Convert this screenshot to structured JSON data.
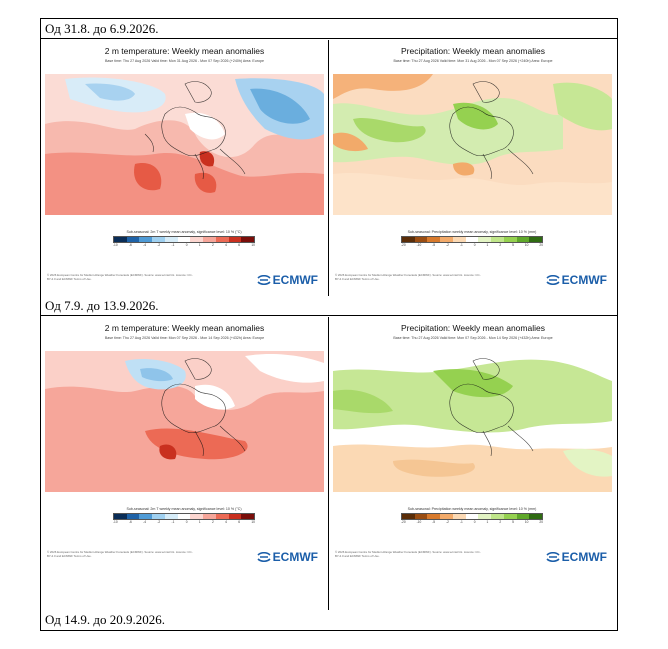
{
  "rows": [
    {
      "label": "Од 31.8. до 6.9.2026."
    },
    {
      "label": "Од 7.9. до 13.9.2026."
    },
    {
      "label": "Од 14.9. до 20.9.2026."
    }
  ],
  "panels": {
    "temp": {
      "title": "2 m temperature: Weekly mean anomalies",
      "subtitle": "Base time: Thu 27 Aug 2026 Valid time: Mon 31 Aug 2026 - Mon 07 Sep 2026 (+240h) Area: Europe",
      "subtitle2": "Base time: Thu 27 Aug 2026 Valid time: Mon 07 Sep 2026 - Mon 14 Sep 2026 (+432h) Area: Europe",
      "colorbar_caption": "Sub-seasonal: 2m T weekly mean anomaly, significance level: 10 % (°C)",
      "ticks": [
        "-10",
        "-6",
        "-4",
        "-2",
        "-1",
        "0",
        "1",
        "2",
        "4",
        "6",
        "10"
      ],
      "colors": [
        "#0a2d57",
        "#1f63a8",
        "#4f9bd6",
        "#9fd0f0",
        "#d6ecf8",
        "#ffffff",
        "#fcd6d0",
        "#f6a69a",
        "#ec6a55",
        "#c9301f",
        "#7a0e0a"
      ]
    },
    "precip": {
      "title": "Precipitation: Weekly mean anomalies",
      "subtitle": "Base time: Thu 27 Aug 2026 Valid time: Mon 31 Aug 2026 - Mon 07 Sep 2026 (+240h) Area: Europe",
      "subtitle2": "Base time: Thu 27 Aug 2026 Valid time: Mon 07 Sep 2026 - Mon 14 Sep 2026 (+432h) Area: Europe",
      "colorbar_caption": "Sub-seasonal: Precipitation weekly mean anomaly, significance level: 10 % (mm)",
      "ticks": [
        "-20",
        "-10",
        "-5",
        "-2",
        "-1",
        "0",
        "1",
        "2",
        "5",
        "10",
        "20"
      ],
      "colors": [
        "#5a2d08",
        "#9a4d12",
        "#d87a2c",
        "#f2aa6a",
        "#fbd9b4",
        "#ffffff",
        "#e3f4c4",
        "#c0e68a",
        "#95d150",
        "#5fa82a",
        "#2f6b12"
      ]
    },
    "footer": "© 2026 European Centre for Medium-Range Weather Forecasts (ECMWF). Source: www.ecmwf.int. Licence: CC-BY-4.0 and ECMWF Terms of Use.",
    "logo": "ECMWF"
  }
}
